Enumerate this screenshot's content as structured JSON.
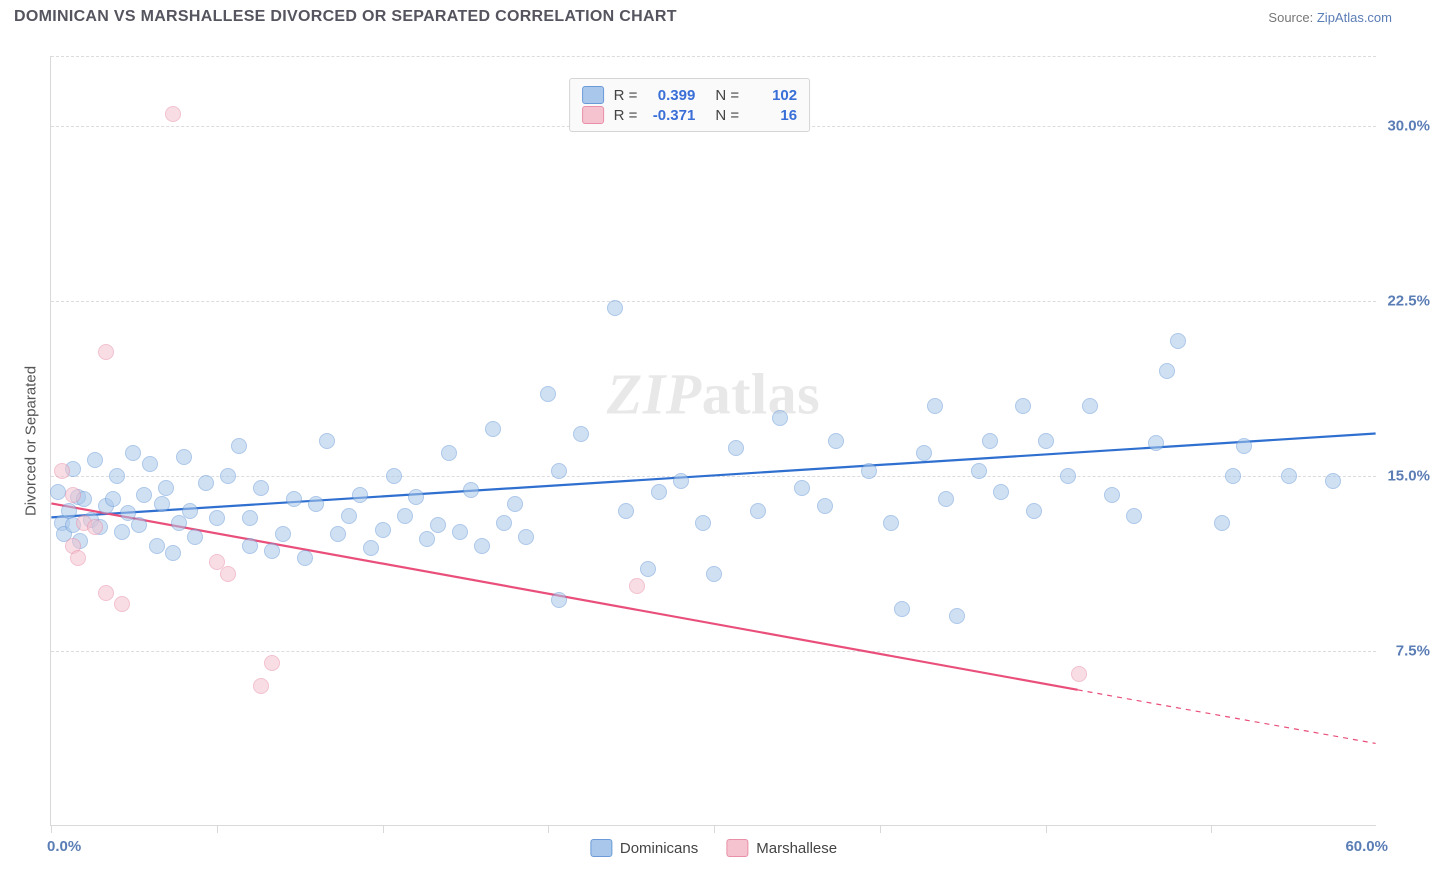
{
  "title": "DOMINICAN VS MARSHALLESE DIVORCED OR SEPARATED CORRELATION CHART",
  "source_label": "Source:",
  "source_name": "ZipAtlas.com",
  "ylabel": "Divorced or Separated",
  "watermark": "ZIPatlas",
  "chart": {
    "type": "scatter",
    "xlim": [
      0,
      60
    ],
    "ylim": [
      0,
      33
    ],
    "x_min_label": "0.0%",
    "x_max_label": "60.0%",
    "y_ticks": [
      7.5,
      15.0,
      22.5,
      30.0
    ],
    "y_tick_labels": [
      "7.5%",
      "15.0%",
      "22.5%",
      "30.0%"
    ],
    "x_tick_marks": [
      0,
      7.5,
      15,
      22.5,
      30,
      37.5,
      45,
      52.5
    ],
    "title_fontsize": 16,
    "label_fontsize": 15,
    "tick_fontsize": 15,
    "tick_color": "#5b7db5",
    "grid_color": "#dcdcdf",
    "axis_color": "#d9d9dc",
    "background_color": "#ffffff",
    "point_radius": 8,
    "point_opacity": 0.55,
    "series": [
      {
        "name": "Dominicans",
        "color_fill": "#a9c7ea",
        "color_stroke": "#6a9bd8",
        "line_color": "#2f6fd0",
        "line_width": 2.2,
        "R": "0.399",
        "N": "102",
        "trend": {
          "x1": 0,
          "y1": 13.2,
          "x2": 60,
          "y2": 16.8
        },
        "points": [
          [
            0.3,
            14.3
          ],
          [
            0.5,
            13.0
          ],
          [
            0.6,
            12.5
          ],
          [
            0.8,
            13.5
          ],
          [
            1.0,
            12.9
          ],
          [
            1.0,
            15.3
          ],
          [
            1.2,
            14.1
          ],
          [
            1.3,
            12.2
          ],
          [
            1.5,
            14.0
          ],
          [
            1.8,
            13.1
          ],
          [
            2.0,
            15.7
          ],
          [
            2.2,
            12.8
          ],
          [
            2.5,
            13.7
          ],
          [
            2.8,
            14.0
          ],
          [
            3.0,
            15.0
          ],
          [
            3.2,
            12.6
          ],
          [
            3.5,
            13.4
          ],
          [
            3.7,
            16.0
          ],
          [
            4.0,
            12.9
          ],
          [
            4.2,
            14.2
          ],
          [
            4.5,
            15.5
          ],
          [
            4.8,
            12.0
          ],
          [
            5.0,
            13.8
          ],
          [
            5.2,
            14.5
          ],
          [
            5.5,
            11.7
          ],
          [
            5.8,
            13.0
          ],
          [
            6.0,
            15.8
          ],
          [
            6.3,
            13.5
          ],
          [
            6.5,
            12.4
          ],
          [
            7.0,
            14.7
          ],
          [
            7.5,
            13.2
          ],
          [
            8.0,
            15.0
          ],
          [
            8.5,
            16.3
          ],
          [
            9.0,
            12.0
          ],
          [
            9.0,
            13.2
          ],
          [
            9.5,
            14.5
          ],
          [
            10.0,
            11.8
          ],
          [
            10.5,
            12.5
          ],
          [
            11.0,
            14.0
          ],
          [
            11.5,
            11.5
          ],
          [
            12.0,
            13.8
          ],
          [
            12.5,
            16.5
          ],
          [
            13.0,
            12.5
          ],
          [
            13.5,
            13.3
          ],
          [
            14.0,
            14.2
          ],
          [
            14.5,
            11.9
          ],
          [
            15.0,
            12.7
          ],
          [
            15.5,
            15.0
          ],
          [
            16.0,
            13.3
          ],
          [
            16.5,
            14.1
          ],
          [
            17.0,
            12.3
          ],
          [
            17.5,
            12.9
          ],
          [
            18.0,
            16.0
          ],
          [
            18.5,
            12.6
          ],
          [
            19.0,
            14.4
          ],
          [
            19.5,
            12.0
          ],
          [
            20.0,
            17.0
          ],
          [
            20.5,
            13.0
          ],
          [
            21.0,
            13.8
          ],
          [
            21.5,
            12.4
          ],
          [
            22.5,
            18.5
          ],
          [
            23.0,
            15.2
          ],
          [
            23.0,
            9.7
          ],
          [
            24.0,
            16.8
          ],
          [
            25.5,
            22.2
          ],
          [
            26.0,
            13.5
          ],
          [
            27.0,
            11.0
          ],
          [
            27.5,
            14.3
          ],
          [
            28.5,
            14.8
          ],
          [
            29.5,
            13.0
          ],
          [
            30.0,
            10.8
          ],
          [
            31.0,
            16.2
          ],
          [
            32.0,
            13.5
          ],
          [
            33.0,
            17.5
          ],
          [
            34.0,
            14.5
          ],
          [
            35.0,
            13.7
          ],
          [
            35.5,
            16.5
          ],
          [
            37.0,
            15.2
          ],
          [
            38.0,
            13.0
          ],
          [
            38.5,
            9.3
          ],
          [
            39.5,
            16.0
          ],
          [
            40.0,
            18.0
          ],
          [
            40.5,
            14.0
          ],
          [
            41.0,
            9.0
          ],
          [
            42.0,
            15.2
          ],
          [
            42.5,
            16.5
          ],
          [
            43.0,
            14.3
          ],
          [
            44.0,
            18.0
          ],
          [
            44.5,
            13.5
          ],
          [
            45.0,
            16.5
          ],
          [
            46.0,
            15.0
          ],
          [
            47.0,
            18.0
          ],
          [
            48.0,
            14.2
          ],
          [
            49.0,
            13.3
          ],
          [
            50.0,
            16.4
          ],
          [
            50.5,
            19.5
          ],
          [
            51.0,
            20.8
          ],
          [
            53.0,
            13.0
          ],
          [
            53.5,
            15.0
          ],
          [
            54.0,
            16.3
          ],
          [
            56.0,
            15.0
          ],
          [
            58.0,
            14.8
          ]
        ]
      },
      {
        "name": "Marshallese",
        "color_fill": "#f4c3cf",
        "color_stroke": "#e98fa8",
        "line_color": "#e94f7a",
        "line_width": 2.2,
        "R": "-0.371",
        "N": "16",
        "trend": {
          "x1": 0,
          "y1": 13.8,
          "x2": 46.5,
          "y2": 5.8
        },
        "trend_extend": {
          "x1": 46.5,
          "y1": 5.8,
          "x2": 60,
          "y2": 3.5
        },
        "points": [
          [
            0.5,
            15.2
          ],
          [
            1.0,
            14.2
          ],
          [
            1.0,
            12.0
          ],
          [
            1.2,
            11.5
          ],
          [
            1.5,
            13.0
          ],
          [
            2.0,
            12.8
          ],
          [
            2.5,
            10.0
          ],
          [
            2.5,
            20.3
          ],
          [
            3.2,
            9.5
          ],
          [
            5.5,
            30.5
          ],
          [
            7.5,
            11.3
          ],
          [
            8.0,
            10.8
          ],
          [
            9.5,
            6.0
          ],
          [
            10.0,
            7.0
          ],
          [
            26.5,
            10.3
          ],
          [
            46.5,
            6.5
          ]
        ]
      }
    ],
    "top_legend": {
      "r_label": "R =",
      "n_label": "N ="
    },
    "bottom_legend_labels": [
      "Dominicans",
      "Marshallese"
    ]
  }
}
